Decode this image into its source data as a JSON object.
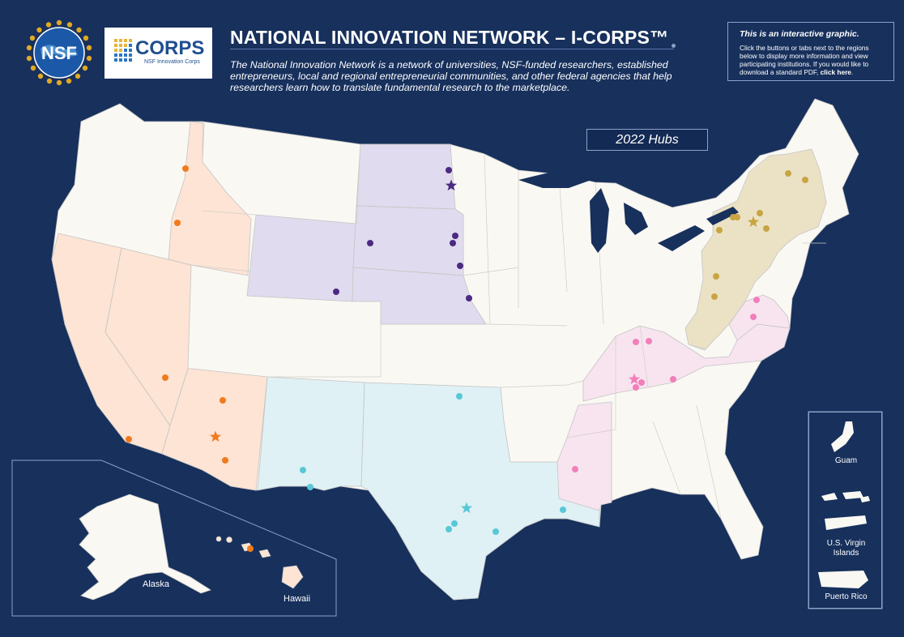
{
  "header": {
    "title": "NATIONAL INNOVATION NETWORK – I-CORPS™",
    "subtitle": "The National Innovation Network is a network of universities, NSF-funded researchers, established entrepreneurs, local and regional entrepreneurial communities, and other federal agencies that help researchers learn how to translate fundamental research to the marketplace.",
    "nsf_logo_text": "NSF",
    "icorps_logo_text": "CORPS",
    "icorps_logo_sub": "NSF Innovation Corps"
  },
  "info_box": {
    "title": "This is an interactive graphic.",
    "body": "Click the buttons or tabs next to the regions below to display more information and view participating institutions. If you would like to download a standard PDF, ",
    "link": "click here",
    "end": "."
  },
  "map": {
    "hubs_label": "2022 Hubs",
    "insets": {
      "alaska": "Alaska",
      "hawaii": "Hawaii"
    },
    "territories": {
      "guam": "Guam",
      "usvi": "U.S. Virgin Islands",
      "puerto_rico": "Puerto Rico"
    },
    "regions": [
      {
        "id": "west",
        "color": "#fde4d4",
        "marker": "#f07a1e"
      },
      {
        "id": "midwest",
        "color": "#e0dbee",
        "marker": "#4b2a82"
      },
      {
        "id": "southwest",
        "color": "#dff1f4",
        "marker": "#57c8d7"
      },
      {
        "id": "mid-south",
        "color": "#f7e4ef",
        "marker": "#f27fb9"
      },
      {
        "id": "northeast",
        "color": "#ebe2c6",
        "marker": "#c8a543"
      }
    ]
  },
  "colors": {
    "background": "#17305c",
    "land": "#faf8f3",
    "border": "#b9b9b9"
  }
}
